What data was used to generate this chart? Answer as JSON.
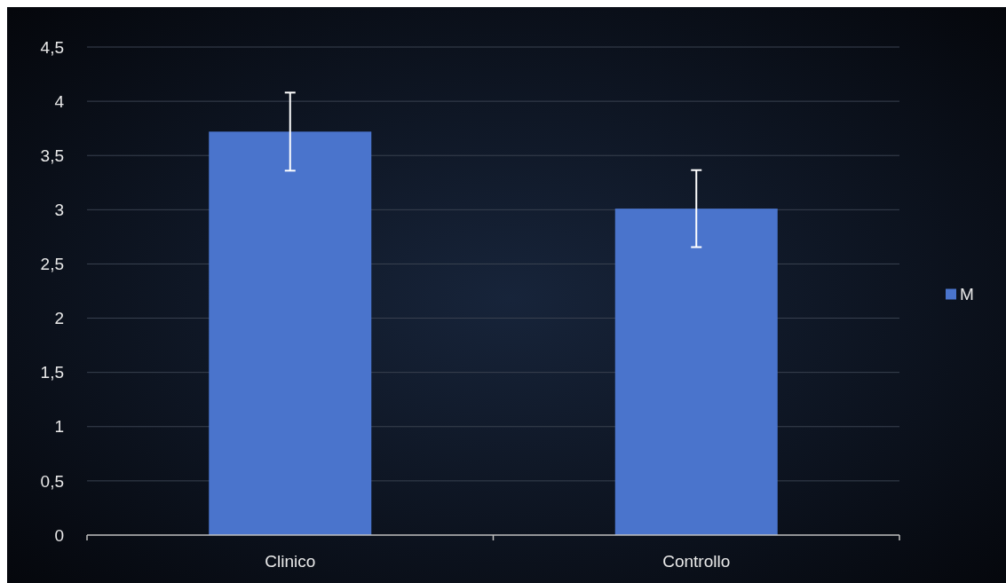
{
  "chart_data": {
    "type": "bar",
    "categories": [
      "Clinico",
      "Controllo"
    ],
    "series": [
      {
        "name": "M",
        "color": "#4a74cc",
        "values": [
          3.72,
          3.01
        ],
        "errors": [
          0.36,
          0.355
        ]
      }
    ],
    "ylim": [
      0,
      4.5
    ],
    "yticks": [
      0,
      {
        "value": 0.5,
        "label": "0,5"
      },
      1,
      {
        "value": 1.5,
        "label": "1,5"
      },
      2,
      {
        "value": 2.5,
        "label": "2,5"
      },
      3,
      {
        "value": 3.5,
        "label": "3,5"
      },
      4,
      {
        "value": 4.5,
        "label": "4,5"
      }
    ],
    "grid": "y",
    "legend": "right"
  }
}
